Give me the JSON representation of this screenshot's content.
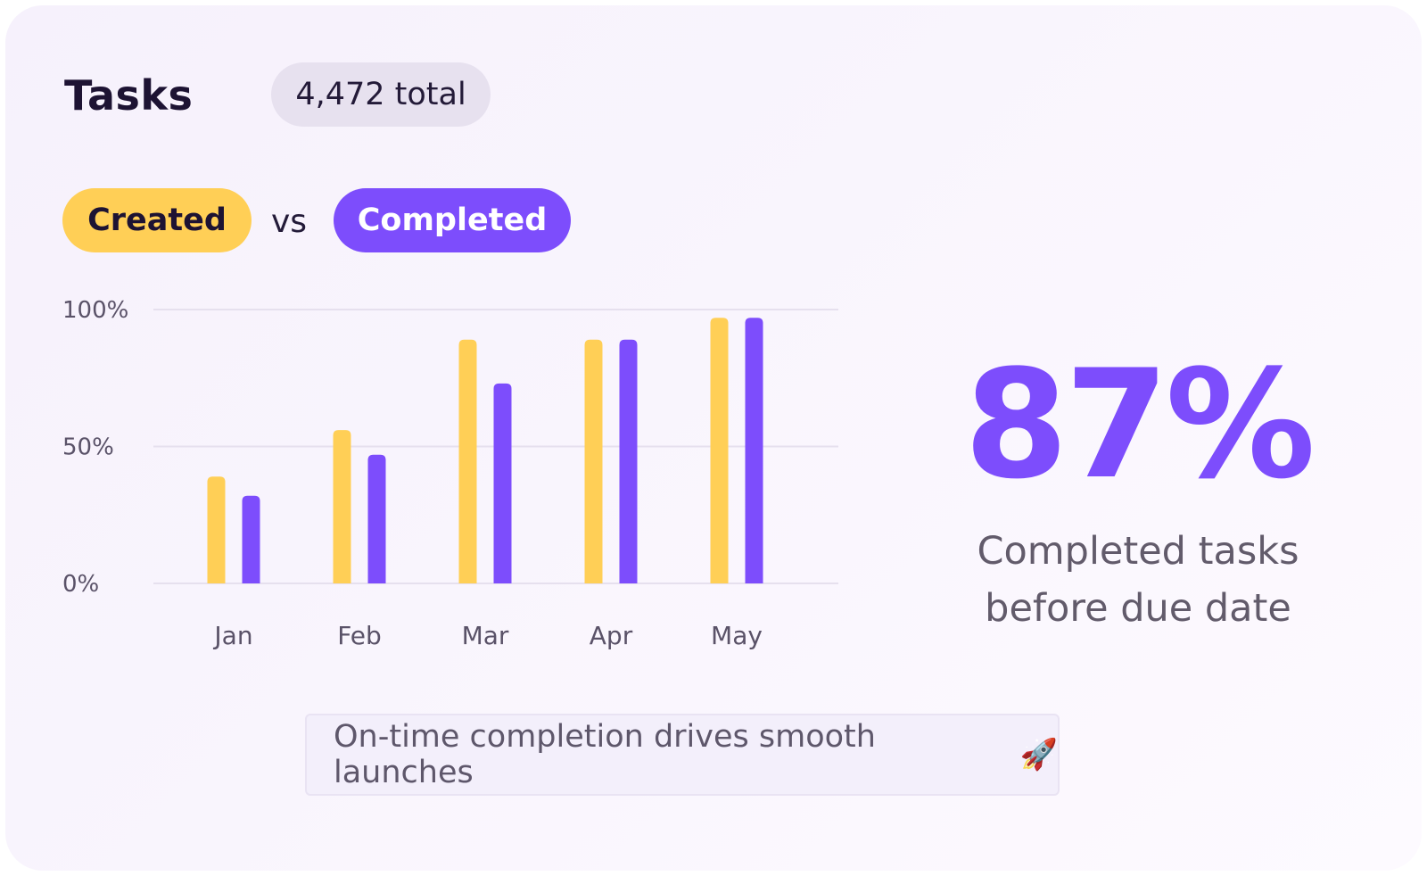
{
  "header": {
    "title": "Tasks",
    "total_badge": "4,472 total"
  },
  "legend": {
    "created_label": "Created",
    "vs_label": "vs",
    "completed_label": "Completed"
  },
  "chart_data": {
    "type": "bar",
    "title": "",
    "xlabel": "",
    "ylabel": "",
    "categories": [
      "Jan",
      "Feb",
      "Mar",
      "Apr",
      "May"
    ],
    "series": [
      {
        "name": "Created",
        "color": "#ffcf56",
        "values": [
          39,
          56,
          89,
          89,
          97
        ]
      },
      {
        "name": "Completed",
        "color": "#7d4dfc",
        "values": [
          32,
          47,
          73,
          89,
          97
        ]
      }
    ],
    "ylim": [
      0,
      100
    ],
    "yticks": [
      0,
      50,
      100
    ],
    "ytick_labels": [
      "0%",
      "50%",
      "100%"
    ],
    "grid": true
  },
  "highlight": {
    "value": "87%",
    "caption_line1": "Completed tasks",
    "caption_line2": "before due date",
    "color": "#7d4dfc"
  },
  "footer": {
    "note": "On-time completion drives smooth launches",
    "icon": "rocket-icon",
    "icon_glyph": "🚀"
  }
}
